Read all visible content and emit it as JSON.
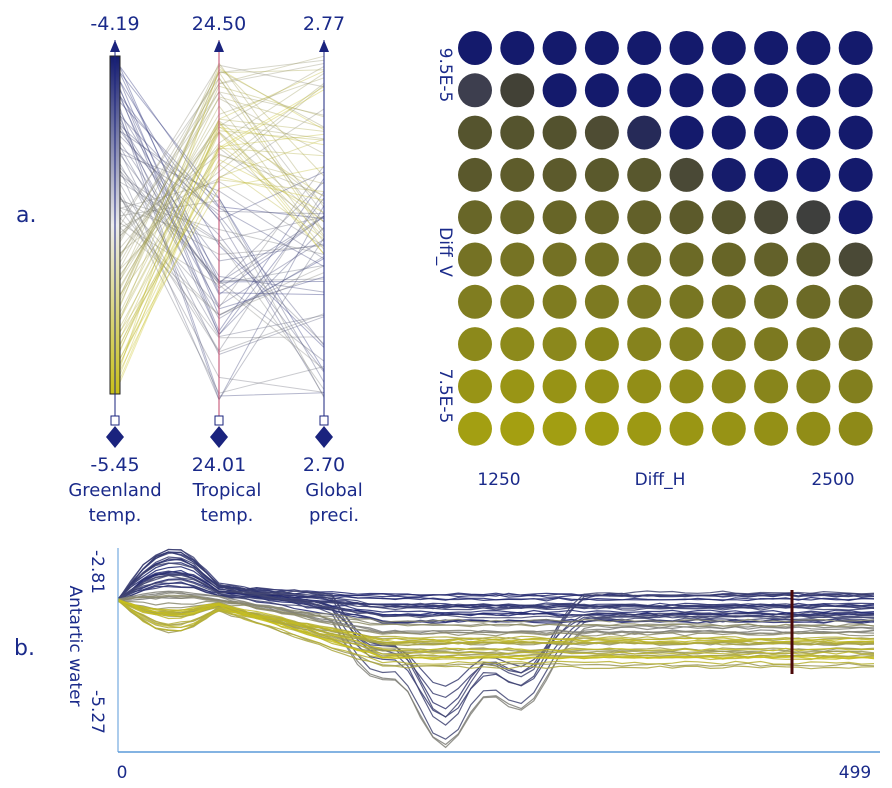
{
  "panels": {
    "a_label": "a.",
    "b_label": "b."
  },
  "chart_data": [
    {
      "type": "parallel_coordinates",
      "axes": [
        {
          "name_line1": "Greenland",
          "name_line2": "temp.",
          "max": "-4.19",
          "min": "-5.45"
        },
        {
          "name_line1": "Tropical",
          "name_line2": "temp.",
          "max": "24.50",
          "min": "24.01"
        },
        {
          "name_line1": "Global",
          "name_line2": "preci.",
          "max": "2.77",
          "min": "2.70"
        }
      ],
      "color_scale": {
        "high": "#141b6e",
        "mid": "#e8e8e8",
        "low": "#c8c01a"
      },
      "line_count": 100
    },
    {
      "type": "heatmap",
      "marker": "circle",
      "xlabel": "Diff_H",
      "ylabel": "Diff_V",
      "x_ticks": [
        "1250",
        "2500"
      ],
      "y_ticks": [
        "9.5E-5",
        "7.5E-5"
      ],
      "rows": 10,
      "cols": 10,
      "colors": [
        [
          "#141a6c",
          "#141a6c",
          "#141a6c",
          "#141a6c",
          "#141a6c",
          "#141a6c",
          "#141a6c",
          "#141a6c",
          "#141a6c",
          "#141a6c"
        ],
        [
          "#3d3e4e",
          "#424136",
          "#141a6c",
          "#141a6c",
          "#141a6c",
          "#141a6c",
          "#141a6c",
          "#141a6c",
          "#141a6c",
          "#141a6c"
        ],
        [
          "#55542e",
          "#55542e",
          "#53522e",
          "#4e4c33",
          "#262a58",
          "#141a6c",
          "#141a6c",
          "#141a6c",
          "#141a6c",
          "#141a6c"
        ],
        [
          "#5a582c",
          "#5e5c2b",
          "#5c5a2c",
          "#5a592c",
          "#58572d",
          "#4a4936",
          "#161c6b",
          "#141a6c",
          "#141a6c",
          "#141a6c"
        ],
        [
          "#686628",
          "#696728",
          "#676527",
          "#666428",
          "#626029",
          "#5c5a2b",
          "#56552e",
          "#4a4936",
          "#3e3f3d",
          "#141a6c"
        ],
        [
          "#757224",
          "#767324",
          "#747124",
          "#727024",
          "#6e6c26",
          "#6c6a26",
          "#676527",
          "#63612a",
          "#5a592c",
          "#4a4936"
        ],
        [
          "#807d20",
          "#817e20",
          "#7f7c20",
          "#7d7a21",
          "#7b7822",
          "#787622",
          "#757223",
          "#716f25",
          "#6c6a26",
          "#666428"
        ],
        [
          "#8c891b",
          "#8d8a1b",
          "#8b881c",
          "#898619",
          "#86831d",
          "#83801e",
          "#807d1f",
          "#7c7920",
          "#777422",
          "#737024"
        ],
        [
          "#989416",
          "#999515",
          "#979315",
          "#959116",
          "#928e17",
          "#8f8b18",
          "#8c881a",
          "#88851b",
          "#85821d",
          "#827f1e"
        ],
        [
          "#a39f12",
          "#a49f11",
          "#a29e12",
          "#a09c12",
          "#9d9913",
          "#9a9614",
          "#979315",
          "#949016",
          "#918d17",
          "#8e8a18"
        ]
      ]
    },
    {
      "type": "line",
      "ylabel": "Antartic water",
      "y_ticks": [
        "-2.81",
        "-5.27"
      ],
      "x_ticks": [
        "0",
        "499"
      ],
      "ylim": [
        -5.27,
        -2.81
      ],
      "xlim": [
        0,
        499
      ],
      "highlight_x": 451,
      "series_count": 60
    }
  ]
}
